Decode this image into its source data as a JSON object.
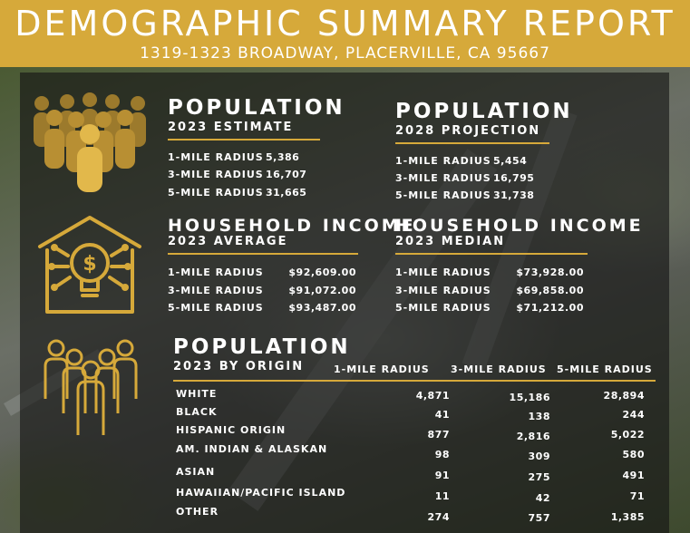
{
  "header": {
    "title": "DEMOGRAPHIC SUMMARY REPORT",
    "address": "1319-1323 BROADWAY, PLACERVILLE, CA 95667"
  },
  "colors": {
    "accent": "#d6a93a",
    "overlay": "#141414"
  },
  "population_2023": {
    "title": "POPULATION",
    "subtitle": "2023 ESTIMATE",
    "rows": [
      {
        "label": "1-MILE RADIUS",
        "value": "5,386"
      },
      {
        "label": "3-MILE RADIUS",
        "value": "16,707"
      },
      {
        "label": "5-MILE RADIUS",
        "value": "31,665"
      }
    ]
  },
  "population_2028": {
    "title": "POPULATION",
    "subtitle": "2028 PROJECTION",
    "rows": [
      {
        "label": "1-MILE RADIUS",
        "value": "5,454"
      },
      {
        "label": "3-MILE RADIUS",
        "value": "16,795"
      },
      {
        "label": "5-MILE RADIUS",
        "value": "31,738"
      }
    ]
  },
  "income_average": {
    "title": "HOUSEHOLD INCOME",
    "subtitle": "2023 AVERAGE",
    "rows": [
      {
        "label": "1-MILE RADIUS",
        "value": "$92,609.00"
      },
      {
        "label": "3-MILE RADIUS",
        "value": "$91,072.00"
      },
      {
        "label": "5-MILE RADIUS",
        "value": "$93,487.00"
      }
    ]
  },
  "income_median": {
    "title": "HOUSEHOLD INCOME",
    "subtitle": "2023 MEDIAN",
    "rows": [
      {
        "label": "1-MILE RADIUS",
        "value": "$73,928.00"
      },
      {
        "label": "3-MILE RADIUS",
        "value": "$69,858.00"
      },
      {
        "label": "5-MILE RADIUS",
        "value": "$71,212.00"
      }
    ]
  },
  "origin": {
    "title": "POPULATION",
    "subtitle": "2023 BY ORIGIN",
    "columns": [
      "1-MILE RADIUS",
      "3-MILE RADIUS",
      "5-MILE RADIUS"
    ],
    "rows": [
      {
        "label": "WHITE",
        "values": [
          "4,871",
          "15,186",
          "28,894"
        ]
      },
      {
        "label": "BLACK",
        "values": [
          "41",
          "138",
          "244"
        ]
      },
      {
        "label": "HISPANIC ORIGIN",
        "values": [
          "877",
          "2,816",
          "5,022"
        ]
      },
      {
        "label": "AM. INDIAN & ALASKAN",
        "values": [
          "98",
          "309",
          "580"
        ]
      },
      {
        "label": "ASIAN",
        "values": [
          "91",
          "275",
          "491"
        ]
      },
      {
        "label": "HAWAIIAN/PACIFIC ISLAND",
        "values": [
          "11",
          "42",
          "71"
        ]
      },
      {
        "label": "OTHER",
        "values": [
          "274",
          "757",
          "1,385"
        ]
      }
    ]
  },
  "icons": {
    "crowd": "crowd-icon",
    "income": "house-lightbulb-dollar-icon",
    "origin": "people-outline-icon"
  }
}
